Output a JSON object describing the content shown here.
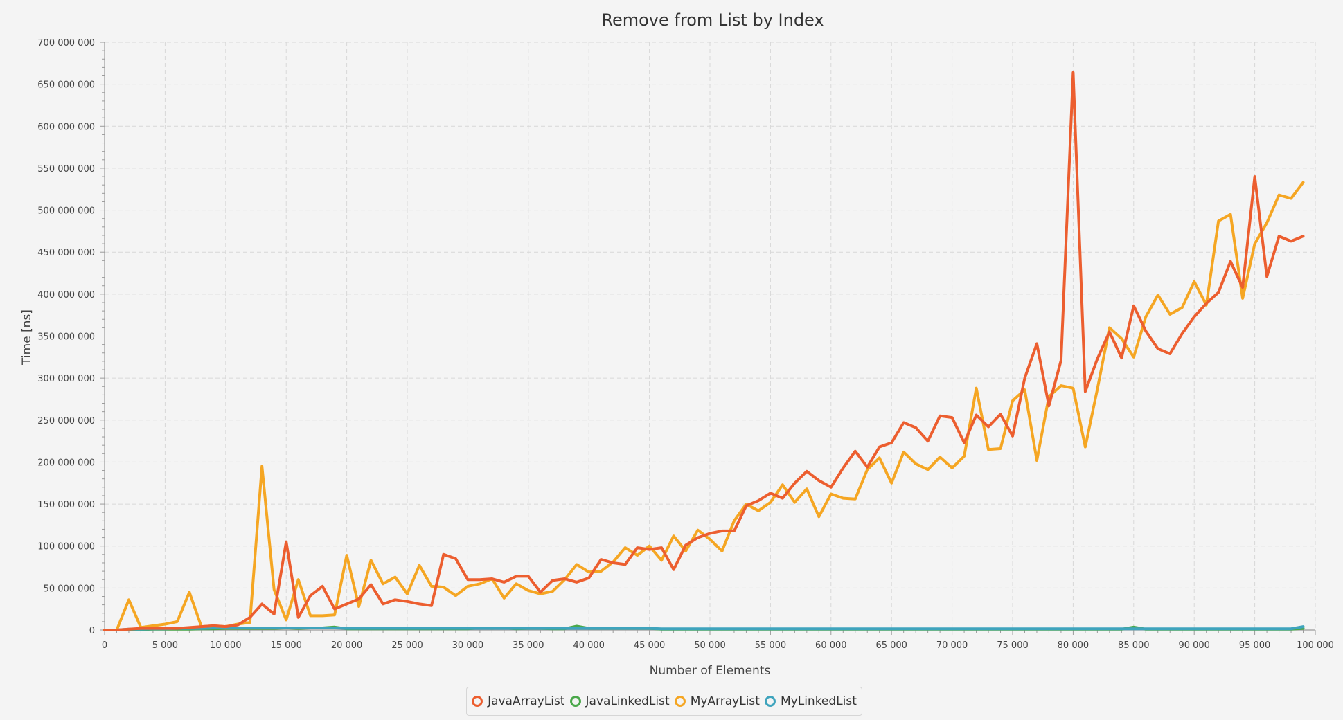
{
  "chart_data": {
    "type": "line",
    "title": "Remove from List by Index",
    "xlabel": "Number of Elements",
    "ylabel": "Time [ns]",
    "xlim": [
      0,
      100000
    ],
    "ylim": [
      0,
      700000000
    ],
    "x_ticks": [
      "0",
      "5 000",
      "10 000",
      "15 000",
      "20 000",
      "25 000",
      "30 000",
      "35 000",
      "40 000",
      "45 000",
      "50 000",
      "55 000",
      "60 000",
      "65 000",
      "70 000",
      "75 000",
      "80 000",
      "85 000",
      "90 000",
      "95 000",
      "100 000"
    ],
    "y_ticks": [
      "0",
      "50 000 000",
      "100 000 000",
      "150 000 000",
      "200 000 000",
      "250 000 000",
      "300 000 000",
      "350 000 000",
      "400 000 000",
      "450 000 000",
      "500 000 000",
      "550 000 000",
      "600 000 000",
      "650 000 000",
      "700 000 000"
    ],
    "grid": true,
    "legend_position": "bottom",
    "x": [
      0,
      1000,
      2000,
      3000,
      4000,
      5000,
      6000,
      7000,
      8000,
      9000,
      10000,
      11000,
      12000,
      13000,
      14000,
      15000,
      16000,
      17000,
      18000,
      19000,
      20000,
      21000,
      22000,
      23000,
      24000,
      25000,
      26000,
      27000,
      28000,
      29000,
      30000,
      31000,
      32000,
      33000,
      34000,
      35000,
      36000,
      37000,
      38000,
      39000,
      40000,
      41000,
      42000,
      43000,
      44000,
      45000,
      46000,
      47000,
      48000,
      49000,
      50000,
      51000,
      52000,
      53000,
      54000,
      55000,
      56000,
      57000,
      58000,
      59000,
      60000,
      61000,
      62000,
      63000,
      64000,
      65000,
      66000,
      67000,
      68000,
      69000,
      70000,
      71000,
      72000,
      73000,
      74000,
      75000,
      76000,
      77000,
      78000,
      79000,
      80000,
      81000,
      82000,
      83000,
      84000,
      85000,
      86000,
      87000,
      88000,
      89000,
      90000,
      91000,
      92000,
      93000,
      94000,
      95000,
      96000,
      97000,
      98000,
      99000
    ],
    "series": [
      {
        "name": "JavaArrayList",
        "color": "#ec5e2f",
        "values": [
          0,
          0,
          1000000,
          2000000,
          2000000,
          2000000,
          2000000,
          3000000,
          4000000,
          5000000,
          4000000,
          6000000,
          15000000,
          31000000,
          19000000,
          105000000,
          15000000,
          41000000,
          52000000,
          25000000,
          31000000,
          37000000,
          54000000,
          31000000,
          36000000,
          34000000,
          31000000,
          29000000,
          90000000,
          85000000,
          60000000,
          60000000,
          61000000,
          57000000,
          64000000,
          64000000,
          45000000,
          59000000,
          61000000,
          57000000,
          62000000,
          84000000,
          80000000,
          78000000,
          98000000,
          96000000,
          98000000,
          72000000,
          101000000,
          110000000,
          115000000,
          118000000,
          118000000,
          148000000,
          154000000,
          163000000,
          157000000,
          175000000,
          189000000,
          178000000,
          170000000,
          193000000,
          213000000,
          194000000,
          218000000,
          223000000,
          247000000,
          241000000,
          225000000,
          255000000,
          253000000,
          223000000,
          256000000,
          242000000,
          257000000,
          231000000,
          300000000,
          341000000,
          267000000,
          321000000,
          664000000,
          284000000,
          323000000,
          355000000,
          324000000,
          386000000,
          356000000,
          335000000,
          329000000,
          353000000,
          373000000,
          389000000,
          402000000,
          439000000,
          408000000,
          540000000,
          421000000,
          469000000,
          463000000,
          469000000
        ]
      },
      {
        "name": "JavaLinkedList",
        "color": "#4aa84a",
        "values": [
          0,
          0,
          0,
          500000,
          1000000,
          1000000,
          1000000,
          1000000,
          1500000,
          1500000,
          2000000,
          2000000,
          2000000,
          2000000,
          2000000,
          2500000,
          2000000,
          2500000,
          2500000,
          3500000,
          1500000,
          1500000,
          1500000,
          1500000,
          1500000,
          1500000,
          1500000,
          1500000,
          1500000,
          1500000,
          1500000,
          2500000,
          2000000,
          2500000,
          1500000,
          2000000,
          2000000,
          1500000,
          1500000,
          4500000,
          2000000,
          2000000,
          2000000,
          2000000,
          2000000,
          2000000,
          1000000,
          1000000,
          1000000,
          1000000,
          1000000,
          1000000,
          1000000,
          1000000,
          1000000,
          1000000,
          1000000,
          1000000,
          1000000,
          1000000,
          1000000,
          1000000,
          1000000,
          1000000,
          1000000,
          1000000,
          1000000,
          1000000,
          1000000,
          1000000,
          1000000,
          1000000,
          1000000,
          1000000,
          1000000,
          1000000,
          1000000,
          1000000,
          1000000,
          1000000,
          1000000,
          1000000,
          1000000,
          1000000,
          1000000,
          3500000,
          1000000,
          1000000,
          1000000,
          1000000,
          1000000,
          1000000,
          1000000,
          1000000,
          1000000,
          1000000,
          1000000,
          1000000,
          1000000,
          2000000
        ]
      },
      {
        "name": "MyArrayList",
        "color": "#f5a623",
        "values": [
          0,
          0,
          36000000,
          3000000,
          5000000,
          7000000,
          10000000,
          45000000,
          4000000,
          5000000,
          4000000,
          7000000,
          9000000,
          195000000,
          48000000,
          12000000,
          60000000,
          17000000,
          17000000,
          18000000,
          89000000,
          28000000,
          83000000,
          55000000,
          63000000,
          43000000,
          77000000,
          52000000,
          51000000,
          41000000,
          52000000,
          55000000,
          61000000,
          38000000,
          55000000,
          47000000,
          43000000,
          46000000,
          60000000,
          78000000,
          69000000,
          70000000,
          81000000,
          98000000,
          89000000,
          100000000,
          83000000,
          112000000,
          94000000,
          119000000,
          108000000,
          94000000,
          130000000,
          150000000,
          142000000,
          152000000,
          173000000,
          152000000,
          168000000,
          135000000,
          162000000,
          157000000,
          156000000,
          191000000,
          205000000,
          175000000,
          212000000,
          198000000,
          191000000,
          206000000,
          193000000,
          207000000,
          288000000,
          215000000,
          216000000,
          273000000,
          286000000,
          202000000,
          278000000,
          291000000,
          288000000,
          218000000,
          287000000,
          360000000,
          347000000,
          325000000,
          373000000,
          399000000,
          376000000,
          384000000,
          415000000,
          387000000,
          487000000,
          495000000,
          395000000,
          460000000,
          485000000,
          518000000,
          514000000,
          533000000
        ]
      },
      {
        "name": "MyLinkedList",
        "color": "#3fa4bd",
        "values": [
          0,
          0,
          1000000,
          1000000,
          1500000,
          1500000,
          2000000,
          2000000,
          2000000,
          2500000,
          2500000,
          2500000,
          2500000,
          2500000,
          2500000,
          2500000,
          2500000,
          2500000,
          2500000,
          2500000,
          2000000,
          2000000,
          2000000,
          2000000,
          2000000,
          2000000,
          2000000,
          2000000,
          2000000,
          2000000,
          2000000,
          2000000,
          2000000,
          2000000,
          2000000,
          2000000,
          2000000,
          2000000,
          2000000,
          2000000,
          2000000,
          2000000,
          2000000,
          2000000,
          2000000,
          2000000,
          1500000,
          1500000,
          1500000,
          1500000,
          1500000,
          1500000,
          1500000,
          1500000,
          1500000,
          1500000,
          1500000,
          1500000,
          1500000,
          1500000,
          1500000,
          1500000,
          1500000,
          1500000,
          1500000,
          1500000,
          1500000,
          1500000,
          1500000,
          1500000,
          1500000,
          1500000,
          1500000,
          1500000,
          1500000,
          1500000,
          1500000,
          1500000,
          1500000,
          1500000,
          1500000,
          1500000,
          1500000,
          1500000,
          1500000,
          1500000,
          1500000,
          1500000,
          1500000,
          1500000,
          1500000,
          1500000,
          1500000,
          1500000,
          1500000,
          1500000,
          1500000,
          1500000,
          1500000,
          4000000
        ]
      }
    ]
  }
}
